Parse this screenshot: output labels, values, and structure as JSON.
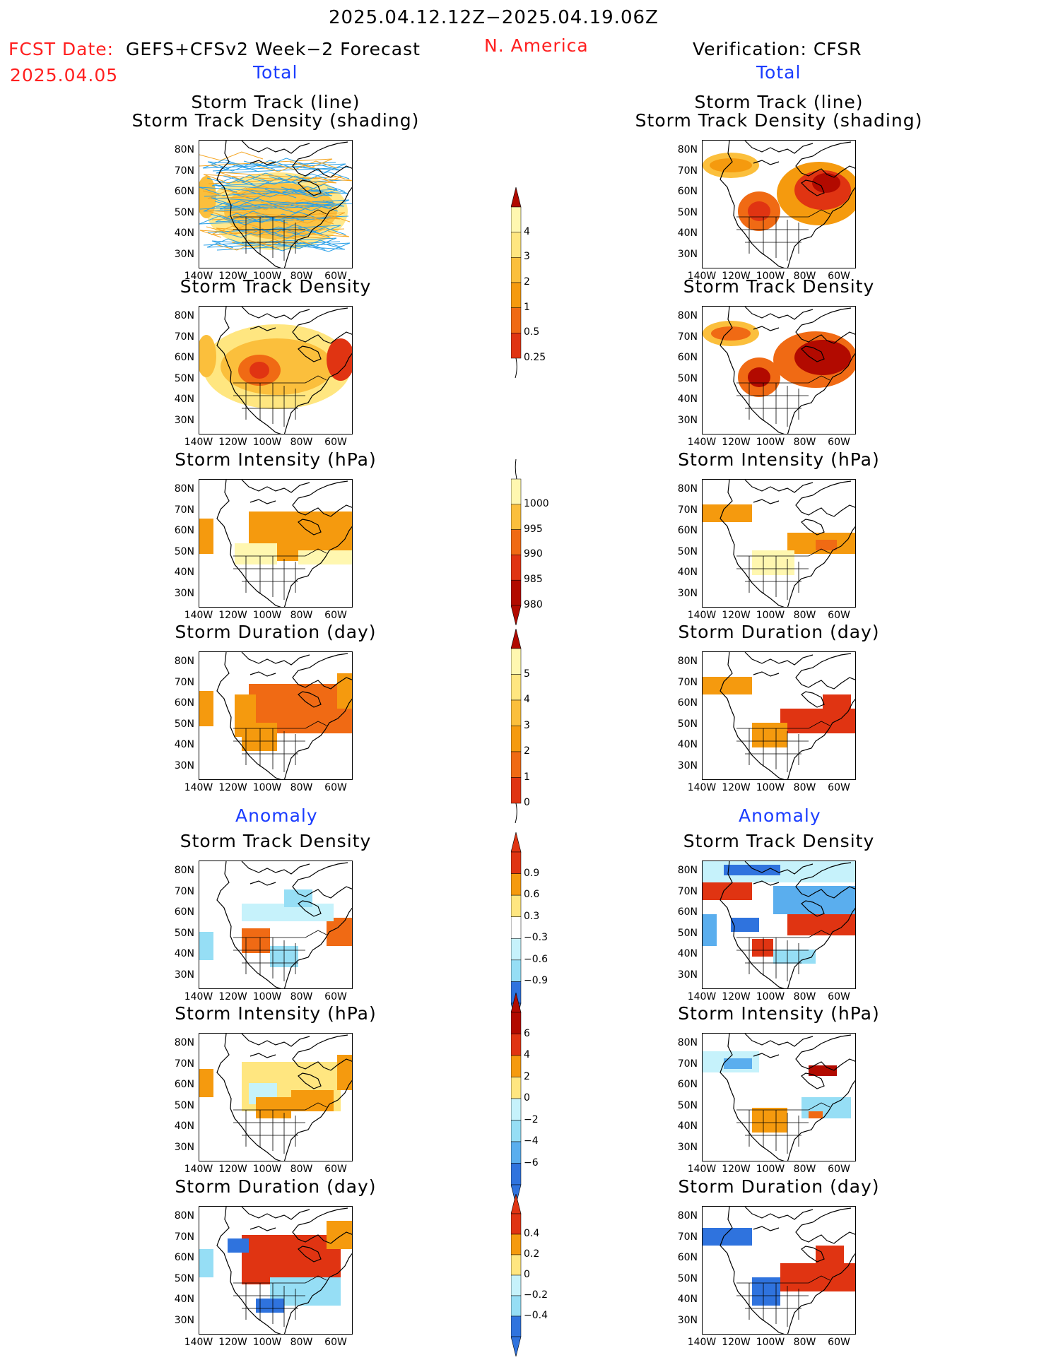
{
  "header": {
    "period": "2025.04.12.12Z−2025.04.19.06Z",
    "fcst_label": "FCST Date:",
    "fcst_model": "GEFS+CFSv2 Week−2 Forecast",
    "fcst_date": "2025.04.05",
    "region": "N. America",
    "verification": "Verification: CFSR",
    "total_left": "Total",
    "total_right": "Total",
    "anomaly_left": "Anomaly",
    "anomaly_right": "Anomaly"
  },
  "panel_titles": {
    "track_line": "Storm Track (line)",
    "track_shading": "Storm Track Density (shading)",
    "density": "Storm Track Density",
    "intensity": "Storm Intensity (hPa)",
    "duration": "Storm Duration (day)"
  },
  "axes": {
    "lat": [
      "80N",
      "70N",
      "60N",
      "50N",
      "40N",
      "30N"
    ],
    "lon": [
      "140W",
      "120W",
      "100W",
      "80W",
      "60W"
    ]
  },
  "colorbars": {
    "density_total": [
      "4",
      "3",
      "2",
      "1",
      "0.5",
      "0.25"
    ],
    "intensity_total": [
      "1000",
      "995",
      "990",
      "985",
      "980"
    ],
    "duration_total": [
      "5",
      "4",
      "3",
      "2",
      "1",
      "0"
    ],
    "density_anom": [
      "0.9",
      "0.6",
      "0.3",
      "−0.3",
      "−0.6",
      "−0.9"
    ],
    "intensity_anom": [
      "6",
      "4",
      "2",
      "0",
      "−2",
      "−4",
      "−6"
    ],
    "duration_anom": [
      "0.4",
      "0.2",
      "0",
      "−0.2",
      "−0.4"
    ]
  },
  "colors": {
    "warm": [
      "#fff7b0",
      "#ffe680",
      "#fbbf3c",
      "#f59a0e",
      "#f06a14",
      "#e03412",
      "#b20a00"
    ],
    "cool": [
      "#c6f2fb",
      "#96def5",
      "#5aaeee",
      "#2f73de",
      "#1045c2"
    ],
    "track_line": "#2aa0e8",
    "track_orange": "#f5a623"
  }
}
